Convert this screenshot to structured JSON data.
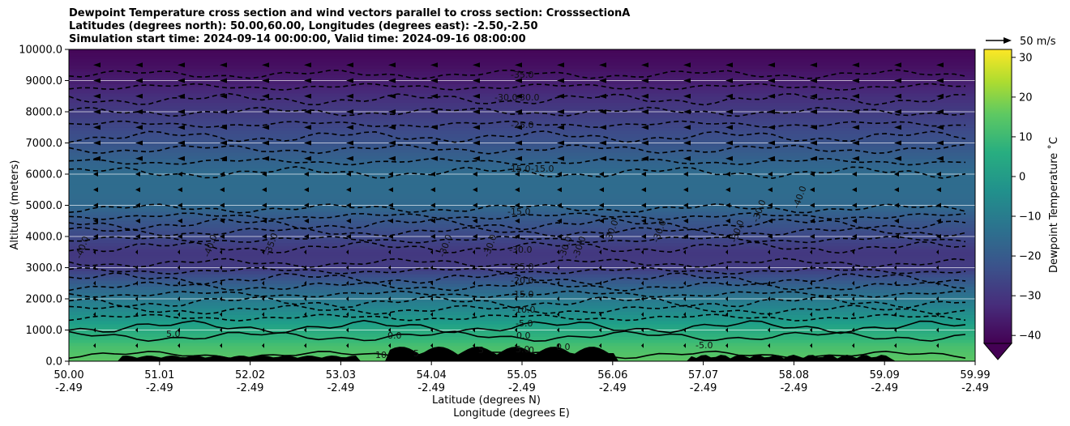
{
  "chart_data": {
    "type": "heatmap",
    "title_lines": [
      "Dewpoint Temperature cross section and wind vectors parallel to cross section: CrosssectionA",
      "Latitudes (degrees north): 50.00,60.00, Longitudes (degrees east): -2.50,-2.50",
      "Simulation start time: 2024-09-14 00:00:00, Valid time: 2024-09-16 08:00:00"
    ],
    "ylabel": "Altitude (meters)",
    "xlabel_lines": [
      "Latitude (degrees N)",
      "Longitude (degrees E)"
    ],
    "ylim": [
      0,
      10000
    ],
    "y_ticks": [
      "0.0",
      "1000.0",
      "2000.0",
      "3000.0",
      "4000.0",
      "5000.0",
      "6000.0",
      "7000.0",
      "8000.0",
      "9000.0",
      "10000.0"
    ],
    "x_ticks": [
      {
        "lat": "50.00",
        "lon": "-2.49"
      },
      {
        "lat": "51.01",
        "lon": "-2.49"
      },
      {
        "lat": "52.02",
        "lon": "-2.49"
      },
      {
        "lat": "53.03",
        "lon": "-2.49"
      },
      {
        "lat": "54.04",
        "lon": "-2.49"
      },
      {
        "lat": "55.05",
        "lon": "-2.49"
      },
      {
        "lat": "56.06",
        "lon": "-2.49"
      },
      {
        "lat": "57.07",
        "lon": "-2.49"
      },
      {
        "lat": "58.08",
        "lon": "-2.49"
      },
      {
        "lat": "59.09",
        "lon": "-2.49"
      },
      {
        "lat": "59.99",
        "lon": "-2.49"
      }
    ],
    "grid": "horizontal",
    "colorbar": {
      "label": "Dewpoint Temperature $^\\circ$C",
      "label_text": "Dewpoint Temperature ˚C",
      "ticks": [
        "30",
        "20",
        "10",
        "0",
        "−10",
        "−20",
        "−30",
        "−40"
      ],
      "tick_values": [
        30,
        20,
        10,
        0,
        -10,
        -20,
        -30,
        -40
      ],
      "range": [
        -42,
        32
      ],
      "extend": "min",
      "colormap": "viridis"
    },
    "quiver_key": "50 m/s",
    "contour_labels": [
      {
        "text": "-35.0"
      },
      {
        "text": "-30.0"
      },
      {
        "text": "-30.0"
      },
      {
        "text": "-25.0"
      },
      {
        "text": "-15.0"
      },
      {
        "text": "-15.0"
      },
      {
        "text": "-15.0"
      },
      {
        "text": "-30.0"
      },
      {
        "text": "-25.0"
      },
      {
        "text": "-20.0"
      },
      {
        "text": "-15.0"
      },
      {
        "text": "-10.0"
      },
      {
        "text": "-5.0"
      },
      {
        "text": "0.0"
      },
      {
        "text": "5.0"
      },
      {
        "text": "0.0"
      },
      {
        "text": "5.0"
      },
      {
        "text": "0.0"
      },
      {
        "text": "-5.0"
      },
      {
        "text": "10"
      },
      {
        "text": "5"
      },
      {
        "text": "5"
      },
      {
        "text": "0"
      },
      {
        "text": "-40.0"
      },
      {
        "text": "-40.0"
      },
      {
        "text": "-35.0"
      },
      {
        "text": "-30.0"
      },
      {
        "text": "-30.0"
      },
      {
        "text": "-30.0"
      },
      {
        "text": "-30.0"
      },
      {
        "text": "-30.0"
      },
      {
        "text": "-30.0"
      },
      {
        "text": "-30.0"
      },
      {
        "text": "-30.0"
      },
      {
        "text": "-40.0"
      }
    ],
    "dewpoint_profile": {
      "alt_m": [
        0,
        500,
        1000,
        1500,
        2000,
        2500,
        3000,
        3500,
        4000,
        4500,
        5000,
        5500,
        6000,
        6500,
        7000,
        7500,
        8000,
        8500,
        9000,
        9500,
        10000
      ],
      "dewpoint_C": [
        13,
        10,
        3,
        -5,
        -12,
        -20,
        -29,
        -30,
        -26,
        -22,
        -17,
        -16,
        -16,
        -19,
        -23,
        -26,
        -29,
        -32,
        -36,
        -39,
        -41
      ]
    },
    "terrain": "black filled orography along lower boundary"
  }
}
